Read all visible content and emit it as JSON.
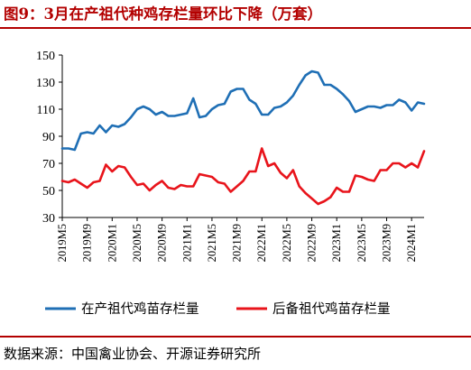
{
  "header": {
    "title": "图9：3月在产祖代种鸡存栏量环比下降（万套）"
  },
  "footer": {
    "source": "数据来源：中国禽业协会、开源证券研究所"
  },
  "colors": {
    "series_blue": "#1f6fb5",
    "series_red": "#e8141b",
    "accent": "#b30000"
  },
  "chart_data": {
    "type": "line",
    "title": "",
    "xlabel": "",
    "ylabel": "",
    "ylim": [
      30,
      150
    ],
    "yticks": [
      30,
      50,
      70,
      90,
      110,
      130,
      150
    ],
    "xticks": [
      "2019M5",
      "2019M9",
      "2020M1",
      "2020M5",
      "2020M9",
      "2021M1",
      "2021M5",
      "2021M9",
      "2022M1",
      "2022M5",
      "2022M9",
      "2023M1",
      "2023M5",
      "2023M9",
      "2024M1"
    ],
    "grid": false,
    "legend_position": "bottom",
    "x": [
      "2019M5",
      "2019M6",
      "2019M7",
      "2019M8",
      "2019M9",
      "2019M10",
      "2019M11",
      "2019M12",
      "2020M1",
      "2020M2",
      "2020M3",
      "2020M4",
      "2020M5",
      "2020M6",
      "2020M7",
      "2020M8",
      "2020M9",
      "2020M10",
      "2020M11",
      "2020M12",
      "2021M1",
      "2021M2",
      "2021M3",
      "2021M4",
      "2021M5",
      "2021M6",
      "2021M7",
      "2021M8",
      "2021M9",
      "2021M10",
      "2021M11",
      "2021M12",
      "2022M1",
      "2022M2",
      "2022M3",
      "2022M4",
      "2022M5",
      "2022M6",
      "2022M7",
      "2022M8",
      "2022M9",
      "2022M10",
      "2022M11",
      "2022M12",
      "2023M1",
      "2023M2",
      "2023M3",
      "2023M4",
      "2023M5",
      "2023M6",
      "2023M7",
      "2023M8",
      "2023M9",
      "2023M10",
      "2023M11",
      "2023M12",
      "2024M1",
      "2024M2",
      "2024M3"
    ],
    "series": [
      {
        "name": "在产祖代鸡苗存栏量",
        "values": [
          81,
          81,
          80,
          92,
          93,
          92,
          98,
          93,
          98,
          97,
          99,
          104,
          110,
          112,
          110,
          106,
          108,
          105,
          105,
          106,
          107,
          118,
          104,
          105,
          110,
          113,
          114,
          123,
          125,
          125,
          117,
          114,
          106,
          106,
          111,
          112,
          115,
          120,
          128,
          135,
          138,
          137,
          128,
          128,
          125,
          121,
          116,
          108,
          110,
          112,
          112,
          111,
          113,
          113,
          117,
          115,
          109,
          115,
          114
        ]
      },
      {
        "name": "后备祖代鸡苗存栏量",
        "values": [
          57,
          56,
          58,
          55,
          52,
          56,
          57,
          69,
          64,
          68,
          67,
          60,
          54,
          55,
          50,
          54,
          57,
          52,
          51,
          54,
          53,
          53,
          62,
          61,
          60,
          56,
          55,
          49,
          53,
          57,
          64,
          64,
          81,
          68,
          70,
          63,
          59,
          65,
          53,
          48,
          44,
          40,
          42,
          45,
          52,
          49,
          49,
          61,
          60,
          58,
          57,
          65,
          65,
          70,
          70,
          67,
          70,
          67,
          79
        ]
      }
    ]
  }
}
